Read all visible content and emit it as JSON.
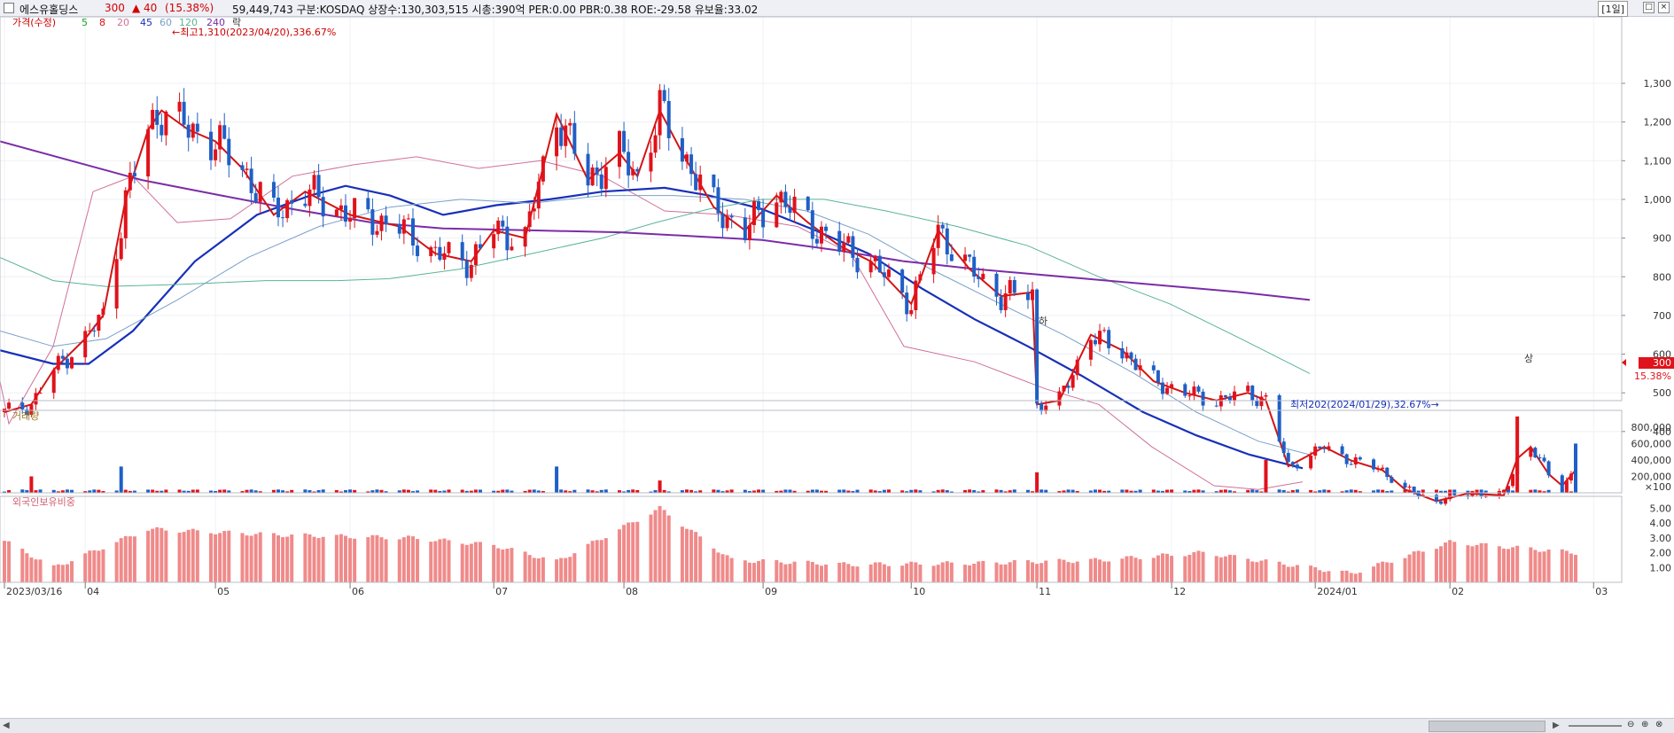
{
  "header": {
    "name": "에스유홀딩스",
    "price": "300",
    "change": "▲ 40",
    "change_rate": "(15.38%)",
    "info": "59,449,743  구분:KOSDAQ 상장수:130,303,515 시총:390억 PER:0.00 PBR:0.38 ROE:-29.58 유보율:33.02",
    "period": "[1일]",
    "restore_btn": "□",
    "close_btn": "×"
  },
  "legend": {
    "price": "가격(수정)",
    "ma5": "5",
    "ma8": "8",
    "ma20": "20",
    "ma45": "45",
    "ma60": "60",
    "ma120": "120",
    "ma240": "240",
    "rak": "락"
  },
  "annotations": {
    "high": "←최고1,310(2023/04/20),336.67%",
    "low": "최저202(2024/01/29),32.67%→",
    "ha_mark": "하",
    "sang_mark": "상"
  },
  "price_tag": {
    "value": "300",
    "rate": "15.38%"
  },
  "panels": {
    "volume": "거래량",
    "foreign": "외국인보유비중"
  },
  "colors": {
    "up": "#e0121b",
    "down": "#1f5fc6",
    "ma5": "#1aa321",
    "ma8": "#d31414",
    "ma20": "#d0709a",
    "ma45": "#1730b8",
    "ma60": "#7aa0c8",
    "ma120": "#5ab39a",
    "ma240": "#7b2ca8",
    "foreign": "#f08a8a"
  },
  "chart_data": [
    {
      "type": "candlestick",
      "title": "",
      "ylim": [
        202,
        1340
      ],
      "y_ticks": [
        "1,300",
        "1,200",
        "1,100",
        "1,000",
        "900",
        "800",
        "700",
        "600",
        "500",
        "400"
      ],
      "x_ticks": [
        "2023/03/16",
        "04",
        "05",
        "06",
        "07",
        "08",
        "09",
        "10",
        "11",
        "12",
        "2024/01",
        "02",
        "03"
      ],
      "trend_points": [
        {
          "date": "2023-03-16",
          "close": 450
        },
        {
          "date": "2023-03-22",
          "close": 470
        },
        {
          "date": "2023-03-27",
          "close": 560
        },
        {
          "date": "2023-04-03",
          "close": 640
        },
        {
          "date": "2023-04-07",
          "close": 700
        },
        {
          "date": "2023-04-12",
          "close": 1000
        },
        {
          "date": "2023-04-17",
          "close": 1180
        },
        {
          "date": "2023-04-20",
          "close": 1230
        },
        {
          "date": "2023-04-26",
          "close": 1180
        },
        {
          "date": "2023-05-02",
          "close": 1150
        },
        {
          "date": "2023-05-08",
          "close": 1080
        },
        {
          "date": "2023-05-15",
          "close": 960
        },
        {
          "date": "2023-05-22",
          "close": 1020
        },
        {
          "date": "2023-06-01",
          "close": 960
        },
        {
          "date": "2023-06-12",
          "close": 930
        },
        {
          "date": "2023-06-20",
          "close": 860
        },
        {
          "date": "2023-06-28",
          "close": 840
        },
        {
          "date": "2023-07-03",
          "close": 920
        },
        {
          "date": "2023-07-10",
          "close": 900
        },
        {
          "date": "2023-07-17",
          "close": 1220
        },
        {
          "date": "2023-07-24",
          "close": 1050
        },
        {
          "date": "2023-07-31",
          "close": 1120
        },
        {
          "date": "2023-08-04",
          "close": 1060
        },
        {
          "date": "2023-08-09",
          "close": 1230
        },
        {
          "date": "2023-08-14",
          "close": 1120
        },
        {
          "date": "2023-08-21",
          "close": 980
        },
        {
          "date": "2023-08-28",
          "close": 920
        },
        {
          "date": "2023-09-04",
          "close": 1010
        },
        {
          "date": "2023-09-11",
          "close": 940
        },
        {
          "date": "2023-09-18",
          "close": 880
        },
        {
          "date": "2023-09-25",
          "close": 840
        },
        {
          "date": "2023-10-04",
          "close": 730
        },
        {
          "date": "2023-10-10",
          "close": 920
        },
        {
          "date": "2023-10-17",
          "close": 820
        },
        {
          "date": "2023-10-24",
          "close": 750
        },
        {
          "date": "2023-10-31",
          "close": 760
        },
        {
          "date": "2023-11-01",
          "close": 470
        },
        {
          "date": "2023-11-06",
          "close": 480
        },
        {
          "date": "2023-11-13",
          "close": 650
        },
        {
          "date": "2023-11-20",
          "close": 610
        },
        {
          "date": "2023-11-27",
          "close": 530
        },
        {
          "date": "2023-12-04",
          "close": 500
        },
        {
          "date": "2023-12-11",
          "close": 480
        },
        {
          "date": "2023-12-18",
          "close": 500
        },
        {
          "date": "2023-12-22",
          "close": 480
        },
        {
          "date": "2023-12-27",
          "close": 310
        },
        {
          "date": "2024-01-04",
          "close": 360
        },
        {
          "date": "2024-01-10",
          "close": 325
        },
        {
          "date": "2024-01-17",
          "close": 300
        },
        {
          "date": "2024-01-22",
          "close": 250
        },
        {
          "date": "2024-01-29",
          "close": 220
        },
        {
          "date": "2024-02-05",
          "close": 240
        },
        {
          "date": "2024-02-13",
          "close": 235
        },
        {
          "date": "2024-02-16",
          "close": 330
        },
        {
          "date": "2024-02-19",
          "close": 360
        },
        {
          "date": "2024-02-23",
          "close": 290
        },
        {
          "date": "2024-02-26",
          "close": 260
        },
        {
          "date": "2024-02-29",
          "close": 300
        }
      ],
      "ma_series": [
        {
          "name": "5",
          "points": []
        },
        {
          "name": "20",
          "points": [
            [
              0,
              530
            ],
            [
              10,
              420
            ],
            [
              60,
              620
            ],
            [
              105,
              1020
            ],
            [
              150,
              1060
            ],
            [
              200,
              940
            ],
            [
              260,
              950
            ],
            [
              330,
              1060
            ],
            [
              400,
              1090
            ],
            [
              470,
              1110
            ],
            [
              540,
              1080
            ],
            [
              610,
              1100
            ],
            [
              680,
              1060
            ],
            [
              750,
              970
            ],
            [
              820,
              960
            ],
            [
              900,
              930
            ],
            [
              960,
              860
            ],
            [
              1020,
              620
            ],
            [
              1100,
              580
            ],
            [
              1180,
              510
            ],
            [
              1240,
              470
            ],
            [
              1300,
              360
            ],
            [
              1370,
              260
            ],
            [
              1420,
              250
            ],
            [
              1470,
              270
            ]
          ]
        },
        {
          "name": "45",
          "points": [
            [
              0,
              610
            ],
            [
              60,
              575
            ],
            [
              100,
              575
            ],
            [
              150,
              660
            ],
            [
              220,
              840
            ],
            [
              290,
              960
            ],
            [
              350,
              1010
            ],
            [
              390,
              1035
            ],
            [
              440,
              1010
            ],
            [
              500,
              960
            ],
            [
              560,
              985
            ],
            [
              620,
              1000
            ],
            [
              680,
              1020
            ],
            [
              750,
              1030
            ],
            [
              800,
              1010
            ],
            [
              860,
              975
            ],
            [
              920,
              920
            ],
            [
              980,
              860
            ],
            [
              1040,
              770
            ],
            [
              1100,
              690
            ],
            [
              1160,
              620
            ],
            [
              1220,
              545
            ],
            [
              1290,
              450
            ],
            [
              1350,
              390
            ],
            [
              1410,
              340
            ],
            [
              1470,
              305
            ]
          ]
        },
        {
          "name": "60",
          "points": [
            [
              0,
              660
            ],
            [
              60,
              620
            ],
            [
              120,
              640
            ],
            [
              200,
              740
            ],
            [
              280,
              850
            ],
            [
              360,
              930
            ],
            [
              440,
              980
            ],
            [
              520,
              1000
            ],
            [
              600,
              990
            ],
            [
              680,
              1010
            ],
            [
              760,
              1010
            ],
            [
              840,
              1000
            ],
            [
              910,
              970
            ],
            [
              980,
              910
            ],
            [
              1050,
              820
            ],
            [
              1120,
              740
            ],
            [
              1200,
              650
            ],
            [
              1280,
              550
            ],
            [
              1350,
              450
            ],
            [
              1420,
              375
            ],
            [
              1478,
              340
            ]
          ]
        },
        {
          "name": "120",
          "points": [
            [
              0,
              850
            ],
            [
              60,
              790
            ],
            [
              120,
              775
            ],
            [
              200,
              780
            ],
            [
              300,
              790
            ],
            [
              380,
              790
            ],
            [
              440,
              795
            ],
            [
              520,
              820
            ],
            [
              600,
              860
            ],
            [
              680,
              900
            ],
            [
              740,
              940
            ],
            [
              800,
              975
            ],
            [
              860,
              1000
            ],
            [
              930,
              1000
            ],
            [
              1000,
              970
            ],
            [
              1080,
              930
            ],
            [
              1160,
              880
            ],
            [
              1240,
              800
            ],
            [
              1320,
              730
            ],
            [
              1400,
              640
            ],
            [
              1478,
              550
            ]
          ]
        },
        {
          "name": "240",
          "points": [
            [
              0,
              1150
            ],
            [
              80,
              1100
            ],
            [
              160,
              1050
            ],
            [
              250,
              1010
            ],
            [
              330,
              975
            ],
            [
              420,
              940
            ],
            [
              500,
              925
            ],
            [
              600,
              920
            ],
            [
              700,
              915
            ],
            [
              780,
              905
            ],
            [
              860,
              895
            ],
            [
              940,
              870
            ],
            [
              1020,
              840
            ],
            [
              1100,
              820
            ],
            [
              1200,
              800
            ],
            [
              1300,
              780
            ],
            [
              1400,
              760
            ],
            [
              1478,
              740
            ]
          ]
        }
      ]
    },
    {
      "type": "bar",
      "title": "거래량",
      "y_ticks": [
        "800,000",
        "600,000",
        "400,000",
        "200,000"
      ],
      "y_unit": "×100",
      "ylim": [
        0,
        950000
      ],
      "peaks": [
        {
          "date": "2023-03-22",
          "value": 200000
        },
        {
          "date": "2023-04-11",
          "value": 320000
        },
        {
          "date": "2023-07-17",
          "value": 320000
        },
        {
          "date": "2023-08-09",
          "value": 150000
        },
        {
          "date": "2023-11-01",
          "value": 250000
        },
        {
          "date": "2023-12-22",
          "value": 400000
        },
        {
          "date": "2024-02-16",
          "value": 930000
        },
        {
          "date": "2024-02-29",
          "value": 600000
        }
      ]
    },
    {
      "type": "bar",
      "title": "외국인보유비중",
      "y_ticks": [
        "5.00",
        "4.00",
        "3.00",
        "2.00",
        "1.00"
      ],
      "ylim": [
        0,
        5.5
      ],
      "samples": [
        {
          "date": "2023-03-16",
          "value": 2.8
        },
        {
          "date": "2023-03-27",
          "value": 1.0
        },
        {
          "date": "2023-04-17",
          "value": 3.6
        },
        {
          "date": "2023-05-15",
          "value": 3.2
        },
        {
          "date": "2023-06-15",
          "value": 3.0
        },
        {
          "date": "2023-07-03",
          "value": 2.5
        },
        {
          "date": "2023-07-17",
          "value": 1.4
        },
        {
          "date": "2023-08-09",
          "value": 5.0
        },
        {
          "date": "2023-08-25",
          "value": 1.5
        },
        {
          "date": "2023-09-20",
          "value": 1.2
        },
        {
          "date": "2023-10-20",
          "value": 1.3
        },
        {
          "date": "2023-11-15",
          "value": 1.5
        },
        {
          "date": "2023-12-08",
          "value": 2.0
        },
        {
          "date": "2024-01-10",
          "value": 0.6
        },
        {
          "date": "2024-02-01",
          "value": 2.7
        },
        {
          "date": "2024-02-29",
          "value": 2.0
        }
      ]
    }
  ]
}
